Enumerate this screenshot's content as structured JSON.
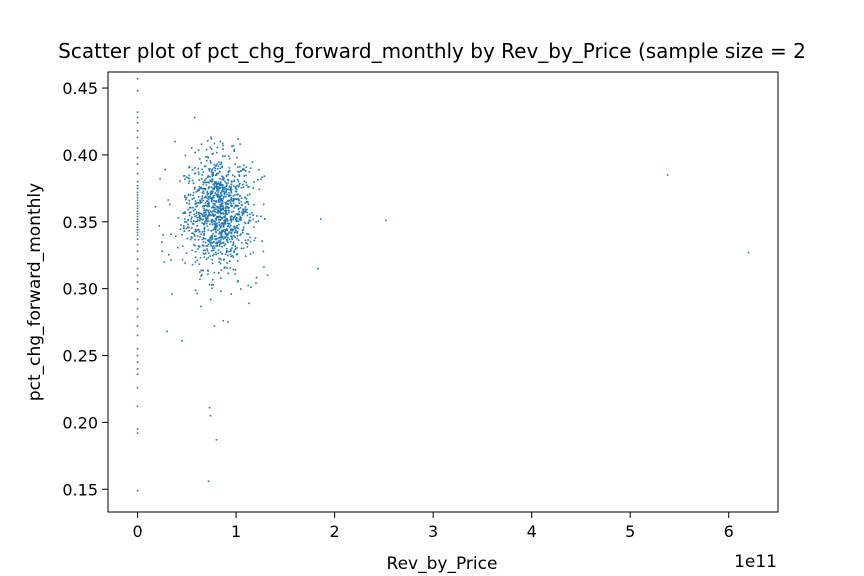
{
  "chart_data": {
    "type": "scatter",
    "title": "Scatter plot of pct_chg_forward_monthly by Rev_by_Price (sample size = 2",
    "xlabel": "Rev_by_Price",
    "ylabel": "pct_chg_forward_monthly",
    "x_offset_text": "1e11",
    "x_scale_factor": 100000000000,
    "xlim": [
      -0.3,
      6.5
    ],
    "ylim": [
      0.133,
      0.462
    ],
    "x_ticks": [
      0,
      1,
      2,
      3,
      4,
      5,
      6
    ],
    "x_tick_labels": [
      "0",
      "1",
      "2",
      "3",
      "4",
      "5",
      "6"
    ],
    "y_ticks": [
      0.15,
      0.2,
      0.25,
      0.3,
      0.35,
      0.4,
      0.45
    ],
    "y_tick_labels": [
      "0.15",
      "0.20",
      "0.25",
      "0.30",
      "0.35",
      "0.40",
      "0.45"
    ],
    "grid": false,
    "legend": "none",
    "marker": "dot",
    "marker_color": "#1f77b4",
    "series": [
      {
        "points": [
          [
            0,
            0.457
          ],
          [
            0,
            0.448
          ],
          [
            0,
            0.432
          ],
          [
            0,
            0.428
          ],
          [
            0,
            0.424
          ],
          [
            0,
            0.418
          ],
          [
            0,
            0.413
          ],
          [
            0,
            0.405
          ],
          [
            0,
            0.398
          ],
          [
            0,
            0.393
          ],
          [
            0,
            0.386
          ],
          [
            0,
            0.38
          ],
          [
            0,
            0.377
          ],
          [
            0,
            0.375
          ],
          [
            0,
            0.372
          ],
          [
            0,
            0.37
          ],
          [
            0,
            0.368
          ],
          [
            0,
            0.366
          ],
          [
            0,
            0.364
          ],
          [
            0,
            0.362
          ],
          [
            0,
            0.36
          ],
          [
            0,
            0.358
          ],
          [
            0,
            0.356
          ],
          [
            0,
            0.354
          ],
          [
            0,
            0.352
          ],
          [
            0,
            0.35
          ],
          [
            0,
            0.348
          ],
          [
            0,
            0.346
          ],
          [
            0,
            0.344
          ],
          [
            0,
            0.342
          ],
          [
            0,
            0.34
          ],
          [
            0,
            0.337
          ],
          [
            0,
            0.333
          ],
          [
            0,
            0.328
          ],
          [
            0,
            0.322
          ],
          [
            0,
            0.315
          ],
          [
            0,
            0.31
          ],
          [
            0,
            0.305
          ],
          [
            0,
            0.3
          ],
          [
            0,
            0.292
          ],
          [
            0,
            0.285
          ],
          [
            0,
            0.279
          ],
          [
            0,
            0.272
          ],
          [
            0,
            0.265
          ],
          [
            0,
            0.255
          ],
          [
            0,
            0.25
          ],
          [
            0,
            0.245
          ],
          [
            0,
            0.24
          ],
          [
            0,
            0.236
          ],
          [
            0,
            0.226
          ],
          [
            0,
            0.212
          ],
          [
            0,
            0.195
          ],
          [
            0,
            0.192
          ],
          [
            0,
            0.149
          ],
          [
            0.3,
            0.268
          ],
          [
            0.45,
            0.261
          ],
          [
            0.35,
            0.296
          ],
          [
            0.22,
            0.347
          ],
          [
            0.25,
            0.328
          ],
          [
            0.28,
            0.389
          ],
          [
            0.38,
            0.41
          ],
          [
            0.58,
            0.428
          ],
          [
            0.63,
            0.397
          ],
          [
            0.65,
            0.408
          ],
          [
            0.72,
            0.156
          ],
          [
            0.73,
            0.211
          ],
          [
            0.74,
            0.205
          ],
          [
            0.8,
            0.187
          ],
          [
            0.78,
            0.272
          ],
          [
            0.87,
            0.276
          ],
          [
            0.92,
            0.275
          ],
          [
            1.28,
            0.363
          ],
          [
            1.32,
            0.31
          ],
          [
            0.75,
            0.412
          ],
          [
            0.84,
            0.41
          ],
          [
            1.05,
            0.388
          ],
          [
            1.02,
            0.306
          ],
          [
            1.15,
            0.301
          ],
          [
            1.13,
            0.289
          ],
          [
            0.95,
            0.296
          ],
          [
            1.86,
            0.352
          ],
          [
            1.83,
            0.315
          ],
          [
            2.52,
            0.351
          ],
          [
            5.38,
            0.385
          ],
          [
            6.2,
            0.327
          ]
        ]
      }
    ],
    "cluster": {
      "center": [
        0.82,
        0.358
      ],
      "spread": [
        0.17,
        0.021
      ],
      "count": 1150
    }
  }
}
